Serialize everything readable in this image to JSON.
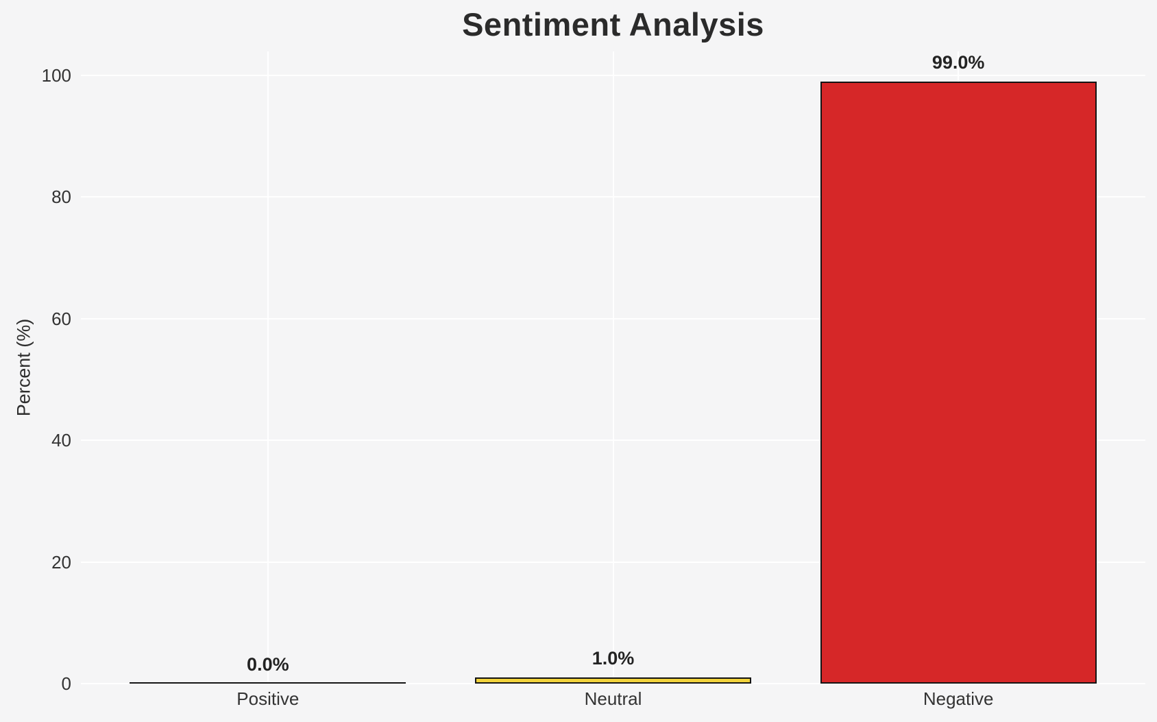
{
  "title": "Sentiment Analysis",
  "colors": {
    "background": "#f5f5f6",
    "gridline": "#ffffff",
    "bar_edge": "#141414",
    "title_text": "#2b2b2b",
    "tick_text": "#333333",
    "neutral_bar": "#f2d33c",
    "negative_bar": "#d62728"
  },
  "chart_data": {
    "type": "bar",
    "title": "Sentiment Analysis",
    "xlabel": "",
    "ylabel": "Percent (%)",
    "categories": [
      "Positive",
      "Neutral",
      "Negative"
    ],
    "values": [
      0.0,
      1.0,
      99.0
    ],
    "bar_labels": [
      "0.0%",
      "1.0%",
      "99.0%"
    ],
    "bar_colors": [
      null,
      "#f2d33c",
      "#d62728"
    ],
    "bar_edge_color": "#141414",
    "yticks": [
      0,
      20,
      40,
      60,
      80,
      100
    ],
    "ylim": [
      0,
      104
    ],
    "grid": true,
    "grid_color": "#ffffff",
    "background_color": "#f5f5f6",
    "legend": false
  }
}
